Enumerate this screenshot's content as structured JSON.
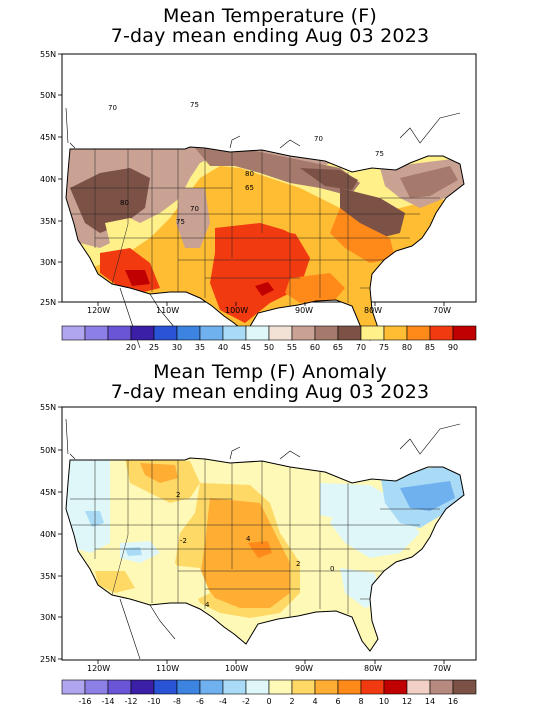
{
  "panels": [
    {
      "title_line1": "Mean Temperature (F)",
      "title_line2": "7-day mean ending Aug 03 2023",
      "lat_labels": [
        "55N",
        "50N",
        "45N",
        "40N",
        "35N",
        "30N",
        "25N"
      ],
      "lon_labels": [
        "120W",
        "110W",
        "100W",
        "90W",
        "80W",
        "70W"
      ],
      "contour_labels": [
        "70",
        "75",
        "70",
        "80",
        "75",
        "80",
        "65",
        "70",
        "75"
      ],
      "legend": {
        "colors": [
          "#b0a6f0",
          "#8c7fe6",
          "#6a55d6",
          "#3b1fa6",
          "#2a54d6",
          "#3c84e0",
          "#6fb0ee",
          "#a9dbf6",
          "#dff7f8",
          "#f2e2d6",
          "#c9a294",
          "#a57a6c",
          "#7c5246",
          "#fff08a",
          "#ffbd33",
          "#ff8a1a",
          "#f23a10",
          "#c00000"
        ],
        "labels": [
          "20",
          "25",
          "30",
          "35",
          "40",
          "45",
          "50",
          "55",
          "60",
          "65",
          "70",
          "75",
          "80",
          "85",
          "90"
        ]
      }
    },
    {
      "title_line1": "Mean Temp (F) Anomaly",
      "title_line2": "7-day mean ending Aug 03 2023",
      "lat_labels": [
        "55N",
        "50N",
        "45N",
        "40N",
        "35N",
        "30N",
        "25N"
      ],
      "lon_labels": [
        "120W",
        "110W",
        "100W",
        "90W",
        "80W",
        "70W"
      ],
      "contour_labels": [
        "2",
        "4",
        "2",
        "0",
        "4",
        "-2"
      ],
      "legend": {
        "colors": [
          "#b0a6f0",
          "#8c7fe6",
          "#6a55d6",
          "#3b1fa6",
          "#2a54d6",
          "#3c84e0",
          "#6fb0ee",
          "#a9dbf6",
          "#dff7f8",
          "#fff9b8",
          "#ffd966",
          "#ffad33",
          "#ff8a1a",
          "#f23a10",
          "#c00000",
          "#f2d0c6",
          "#b68a7e",
          "#7c5246"
        ],
        "labels": [
          "-16",
          "-14",
          "-12",
          "-10",
          "-8",
          "-6",
          "-4",
          "-2",
          "0",
          "2",
          "4",
          "6",
          "8",
          "10",
          "12",
          "14",
          "16"
        ]
      }
    }
  ]
}
